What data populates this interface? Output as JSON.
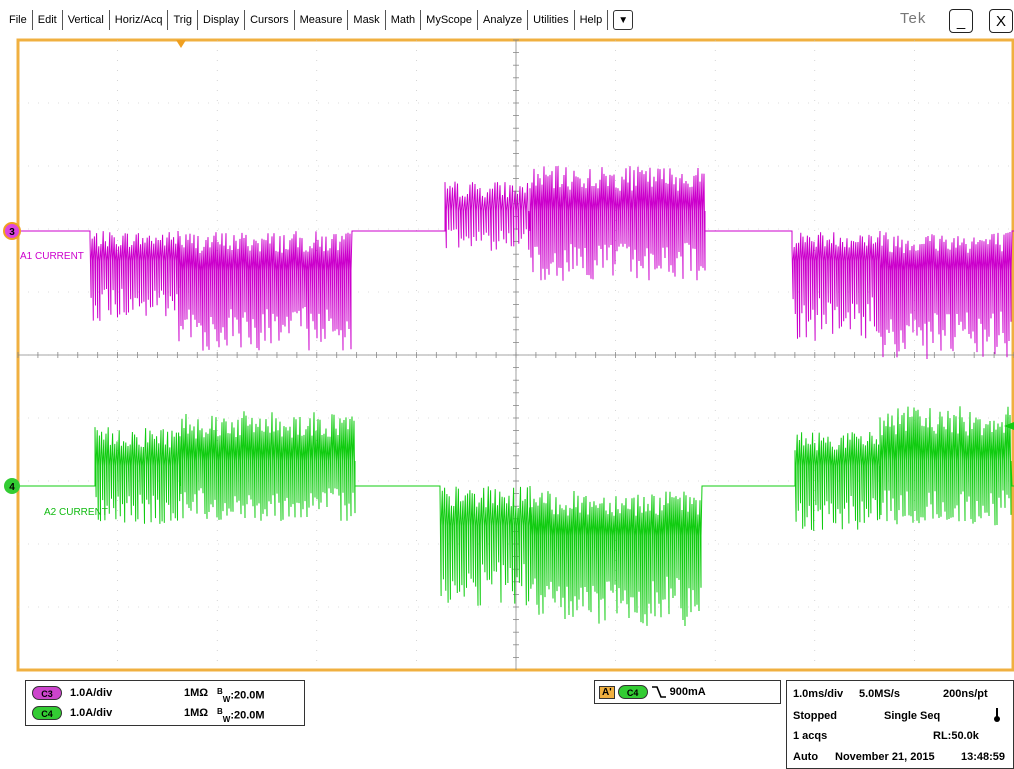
{
  "menu": [
    "File",
    "Edit",
    "Vertical",
    "Horiz/Acq",
    "Trig",
    "Display",
    "Cursors",
    "Measure",
    "Mask",
    "Math",
    "MyScope",
    "Analyze",
    "Utilities",
    "Help"
  ],
  "menu_dropdown": "▼",
  "brand": "Tek",
  "window": {
    "minimize": "_",
    "close": "X"
  },
  "colors": {
    "ch3": "#cc00cc",
    "ch4": "#11cc11",
    "frame": "#f0b040",
    "grid": "#888888"
  },
  "traces": {
    "ch3": {
      "marker": "3",
      "label": "A1 CURRENT"
    },
    "ch4": {
      "marker": "4",
      "label": "A2 CURRENT"
    }
  },
  "vertical": [
    {
      "channel": "C3",
      "scale": "1.0A/div",
      "impedance": "1MΩ",
      "bw_prefix": "B",
      "bw_sub": "W",
      "bw": ":20.0M"
    },
    {
      "channel": "C4",
      "scale": "1.0A/div",
      "impedance": "1MΩ",
      "bw_prefix": "B",
      "bw_sub": "W",
      "bw": ":20.0M"
    }
  ],
  "trigger": {
    "prefix": "A'",
    "source": "C4",
    "slope_icon": "falling-edge",
    "level": "900mA"
  },
  "acq": {
    "timebase": "1.0ms/div",
    "sample_rate": "5.0MS/s",
    "resolution": "200ns/pt",
    "state": "Stopped",
    "mode": "Single Seq",
    "acqs": "1 acqs",
    "record_length": "RL:50.0k",
    "trigger_mode": "Auto",
    "date": "November 21, 2015",
    "time": "13:48:59"
  }
}
